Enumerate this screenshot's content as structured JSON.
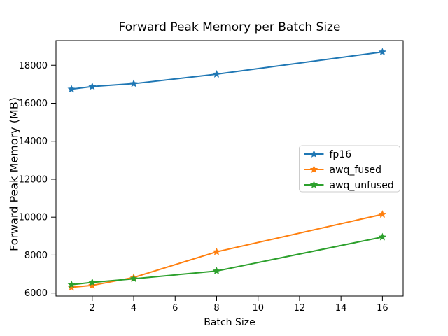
{
  "figure": {
    "background": "#ffffff",
    "axis_color": "#000000"
  },
  "chart_data": {
    "type": "line",
    "title": "Forward Peak Memory per Batch Size",
    "xlabel": "Batch Size",
    "ylabel": "Forward Peak Memory (MB)",
    "x": [
      1,
      2,
      4,
      8,
      16
    ],
    "series": [
      {
        "name": "fp16",
        "color": "#1f77b4",
        "marker": "star",
        "values": [
          16740,
          16880,
          17030,
          17530,
          18700
        ]
      },
      {
        "name": "awq_fused",
        "color": "#ff7f0e",
        "marker": "star",
        "values": [
          6300,
          6400,
          6820,
          8170,
          10150
        ]
      },
      {
        "name": "awq_unfused",
        "color": "#2ca02c",
        "marker": "star",
        "values": [
          6440,
          6560,
          6750,
          7160,
          8950
        ]
      }
    ],
    "xticks": [
      2,
      4,
      6,
      8,
      10,
      12,
      14,
      16
    ],
    "yticks": [
      6000,
      8000,
      10000,
      12000,
      14000,
      16000,
      18000
    ],
    "xlim": [
      0.25,
      17.0
    ],
    "ylim": [
      5840,
      19300
    ],
    "grid": false,
    "legend": {
      "position": "center right",
      "entries": [
        "fp16",
        "awq_fused",
        "awq_unfused"
      ]
    }
  }
}
